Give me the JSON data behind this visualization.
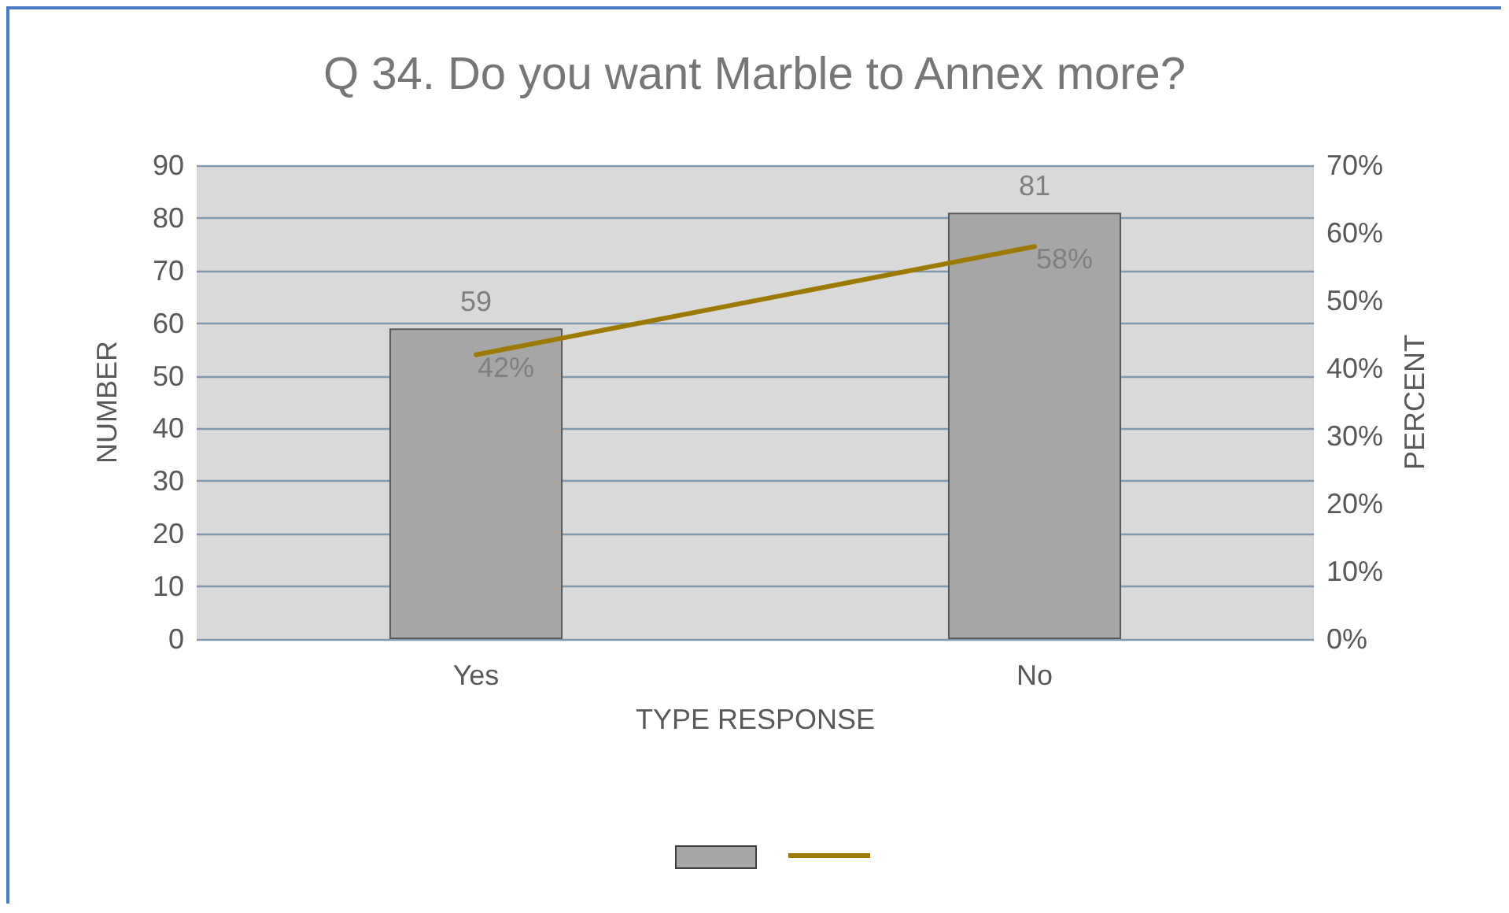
{
  "chart_data": {
    "type": "bar",
    "title": "Q 34. Do you want Marble to Annex more?",
    "xlabel": "TYPE RESPONSE",
    "ylabel": "NUMBER",
    "y2label": "PERCENT",
    "categories": [
      "Yes",
      "No"
    ],
    "series": [
      {
        "color": "#a6a6a6",
        "values": [
          59,
          81
        ]
      },
      {
        "type": "line",
        "axis": "y2",
        "color": "#9c7a00",
        "values": [
          42,
          58
        ],
        "value_labels": [
          "42%",
          "58%"
        ]
      }
    ],
    "data_labels": true,
    "ylim": [
      0,
      90
    ],
    "yticks": [
      0,
      10,
      20,
      30,
      40,
      50,
      60,
      70,
      80,
      90
    ],
    "y2lim": [
      0,
      70
    ],
    "y2ticks": [
      {
        "value": 0,
        "label": "0%"
      },
      {
        "value": 10,
        "label": "10%"
      },
      {
        "value": 20,
        "label": "20%"
      },
      {
        "value": 30,
        "label": "30%"
      },
      {
        "value": 40,
        "label": "40%"
      },
      {
        "value": 50,
        "label": "50%"
      },
      {
        "value": 60,
        "label": "60%"
      },
      {
        "value": 70,
        "label": "70%"
      }
    ],
    "grid": "y",
    "marker": "none",
    "line_style": "solid"
  }
}
